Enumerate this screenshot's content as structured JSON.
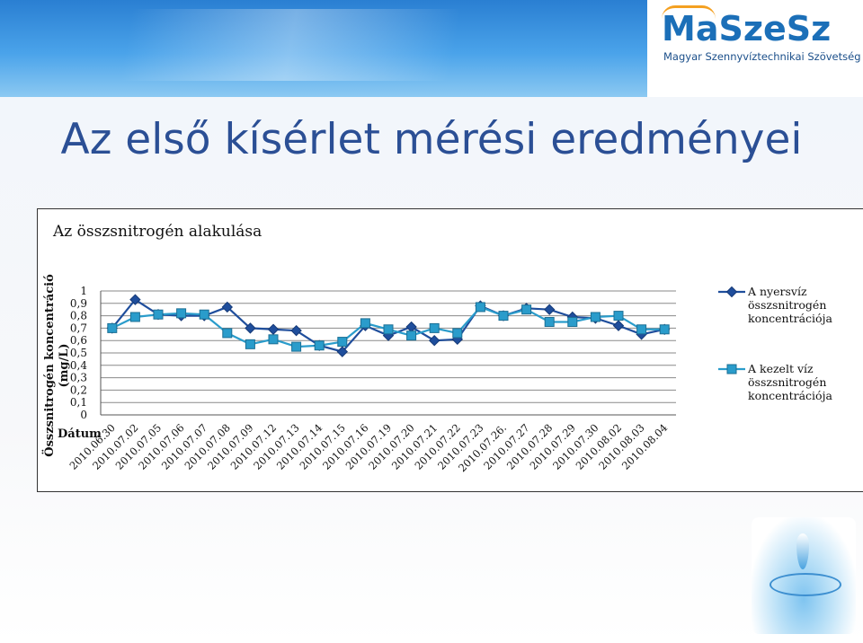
{
  "slide": {
    "title": "Az első kísérlet mérési eredményei"
  },
  "logo": {
    "name": "MaSzeSz",
    "subtitle": "Magyar Szennyvíztechnikai Szövetség"
  },
  "chart_data": {
    "type": "line",
    "title": "Az összsnitrogén alakulása",
    "ylabel": "Összsnitrogén koncentráció (mg/L)",
    "xlabel": "Dátum",
    "ylim": [
      0,
      1
    ],
    "yticks": [
      "0",
      "0,1",
      "0,2",
      "0,3",
      "0,4",
      "0,5",
      "0,6",
      "0,7",
      "0,8",
      "0,9",
      "1"
    ],
    "grid": true,
    "legend_position": "right",
    "categories": [
      "2010.06.30",
      "2010.07.02",
      "2010.07.05",
      "2010.07.06",
      "2010.07.07",
      "2010.07.08",
      "2010.07.09",
      "2010.07.12",
      "2010.07.13",
      "2010.07.14",
      "2010.07.15",
      "2010.07.16",
      "2010.07.19",
      "2010.07.20",
      "2010.07.21",
      "2010.07.22",
      "2010.07.23",
      "2010.07.26.",
      "2010.07.27",
      "2010.07.28",
      "2010.07.29",
      "2010.07.30",
      "2010.08.02",
      "2010.08.03",
      "2010.08.04"
    ],
    "series": [
      {
        "name": "A nyersvíz összsnitrogén koncentrációja",
        "marker": "diamond",
        "color": "#1f4e9c",
        "values": [
          0.7,
          0.93,
          0.81,
          0.8,
          0.8,
          0.87,
          0.7,
          0.69,
          0.68,
          0.56,
          0.51,
          0.72,
          0.64,
          0.71,
          0.6,
          0.61,
          0.88,
          0.8,
          0.86,
          0.85,
          0.79,
          0.78,
          0.72,
          0.65,
          0.69
        ]
      },
      {
        "name": "A kezelt víz összsnitrogén koncentrációja",
        "marker": "square",
        "color": "#2a9ccb",
        "values": [
          0.7,
          0.79,
          0.81,
          0.82,
          0.81,
          0.66,
          0.57,
          0.61,
          0.55,
          0.56,
          0.59,
          0.74,
          0.69,
          0.64,
          0.7,
          0.66,
          0.87,
          0.8,
          0.85,
          0.75,
          0.75,
          0.79,
          0.8,
          0.69,
          0.69
        ]
      }
    ]
  }
}
